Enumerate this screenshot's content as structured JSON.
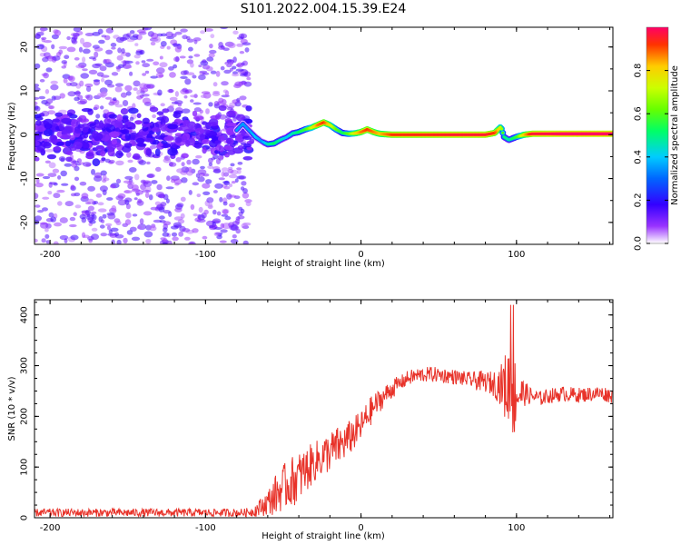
{
  "figure_title": "S101.2022.004.15.39.E24",
  "chart_data": [
    {
      "type": "heatmap",
      "title": "S101.2022.004.15.39.E24",
      "xlabel": "Height of straight line (km)",
      "ylabel": "Frequency (Hz)",
      "xlim": [
        -210,
        162
      ],
      "ylim": [
        -25,
        24.5
      ],
      "x_ticks": [
        -200,
        -100,
        0,
        100
      ],
      "y_ticks": [
        -20,
        -10,
        0,
        10,
        20
      ],
      "colorbar": {
        "label": "Normalized spectral amplitude",
        "range": [
          0,
          1
        ],
        "ticks": [
          0.0,
          0.2,
          0.4,
          0.6,
          0.8
        ],
        "tick_labels": [
          "0.0",
          "0.2",
          "0.4",
          "0.6",
          "0.8"
        ],
        "colors": [
          "#ffffff",
          "#9933ff",
          "#3300ff",
          "#0066ff",
          "#00ccff",
          "#00ff66",
          "#66ff00",
          "#ccff00",
          "#ffcc00",
          "#ff3300",
          "#ff0066"
        ]
      },
      "signal_track": {
        "x": [
          -80,
          -76,
          -72,
          -68,
          -64,
          -60,
          -56,
          -52,
          -48,
          -44,
          -40,
          -36,
          -32,
          -28,
          -24,
          -20,
          -16,
          -12,
          -8,
          -4,
          0,
          4,
          8,
          12,
          16,
          20,
          30,
          40,
          60,
          80,
          86,
          90,
          92,
          95,
          100,
          105,
          110,
          130,
          162
        ],
        "freq": [
          1,
          2.5,
          1,
          -0.5,
          -1.5,
          -2.2,
          -2,
          -1.2,
          -0.6,
          0.3,
          0.6,
          1.2,
          1.6,
          2.2,
          2.8,
          2.2,
          1.2,
          0.4,
          0.2,
          0.3,
          0.6,
          1.2,
          0.6,
          0.2,
          0.1,
          0,
          0,
          0,
          0,
          0,
          0.4,
          1.8,
          -0.5,
          -1.2,
          -0.5,
          0,
          0.2,
          0.2,
          0.2
        ],
        "amplitude": [
          0.35,
          0.35,
          0.35,
          0.4,
          0.35,
          0.45,
          0.5,
          0.45,
          0.4,
          0.45,
          0.5,
          0.55,
          0.7,
          0.85,
          0.9,
          0.75,
          0.6,
          0.5,
          0.6,
          0.75,
          0.85,
          0.9,
          0.85,
          0.8,
          0.85,
          0.9,
          0.92,
          0.92,
          0.95,
          0.95,
          0.9,
          0.7,
          0.5,
          0.45,
          0.55,
          0.8,
          0.95,
          1.0,
          1.0
        ]
      }
    },
    {
      "type": "line",
      "xlabel": "Height of straight line (km)",
      "ylabel": "SNR (10 * v/v)",
      "xlim": [
        -210,
        162
      ],
      "ylim": [
        0,
        430
      ],
      "x_ticks": [
        -200,
        -100,
        0,
        100
      ],
      "y_ticks": [
        0,
        100,
        200,
        300,
        400
      ],
      "color": "#e8332a",
      "series": [
        {
          "name": "SNR",
          "x": [
            -210,
            -180,
            -150,
            -120,
            -90,
            -75,
            -70,
            -65,
            -60,
            -55,
            -50,
            -45,
            -40,
            -35,
            -30,
            -25,
            -20,
            -15,
            -10,
            -5,
            0,
            5,
            10,
            15,
            20,
            25,
            30,
            35,
            40,
            45,
            50,
            55,
            60,
            65,
            70,
            75,
            80,
            85,
            90,
            95,
            97,
            100,
            105,
            110,
            115,
            120,
            125,
            130,
            135,
            140,
            145,
            150,
            155,
            160,
            162
          ],
          "y": [
            10,
            10,
            10,
            10,
            10,
            10,
            12,
            20,
            30,
            45,
            60,
            70,
            80,
            95,
            110,
            120,
            130,
            140,
            150,
            165,
            180,
            205,
            225,
            240,
            255,
            265,
            275,
            280,
            282,
            283,
            282,
            280,
            278,
            275,
            272,
            270,
            268,
            265,
            262,
            255,
            250,
            245,
            245,
            240,
            235,
            240,
            242,
            245,
            243,
            242,
            243,
            245,
            245,
            242,
            240
          ],
          "noise_amplitude": [
            8,
            8,
            8,
            8,
            8,
            8,
            10,
            18,
            25,
            40,
            45,
            50,
            50,
            45,
            40,
            40,
            40,
            40,
            35,
            35,
            30,
            30,
            25,
            20,
            20,
            15,
            15,
            15,
            15,
            15,
            15,
            15,
            15,
            15,
            15,
            20,
            20,
            25,
            40,
            90,
            130,
            60,
            25,
            15,
            15,
            15,
            15,
            15,
            15,
            15,
            15,
            15,
            15,
            15,
            15
          ]
        }
      ]
    }
  ]
}
